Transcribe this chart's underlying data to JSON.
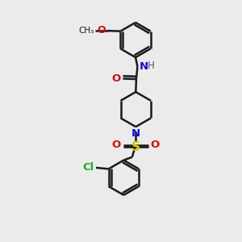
{
  "background_color": "#ebebeb",
  "atom_colors": {
    "C": "#1a1a1a",
    "N": "#1111cc",
    "O": "#cc1111",
    "S": "#cccc00",
    "Cl": "#22aa22",
    "H": "#555555"
  },
  "bond_color": "#1a1a1a",
  "figsize": [
    3.0,
    3.0
  ],
  "dpi": 100,
  "scale": 10
}
